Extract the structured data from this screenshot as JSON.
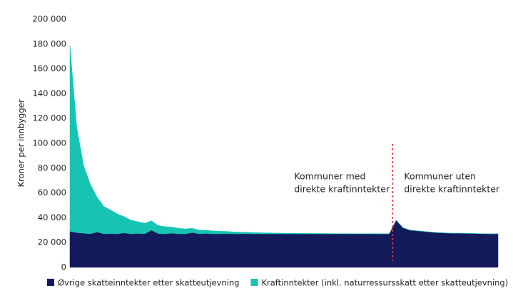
{
  "chart_data": {
    "type": "stacked-area",
    "y_label": "Kroner per innbygger",
    "ylim": [
      0,
      200000
    ],
    "yticks": [
      0,
      {
        "value": 20000,
        "label": "20 000"
      },
      {
        "value": 40000,
        "label": "40 000"
      },
      {
        "value": 60000,
        "label": "60 000"
      },
      {
        "value": 80000,
        "label": "80 000"
      },
      {
        "value": 100000,
        "label": "100 000"
      },
      {
        "value": 120000,
        "label": "120 000"
      },
      {
        "value": 140000,
        "label": "140 000"
      },
      {
        "value": 160000,
        "label": "160 000"
      },
      {
        "value": 180000,
        "label": "180 000"
      },
      {
        "value": 200000,
        "label": "200 000"
      }
    ],
    "categories": [
      null,
      null,
      null,
      null,
      null,
      null,
      null,
      null,
      null,
      null,
      null,
      null,
      null,
      null,
      null,
      null,
      null,
      null,
      null,
      null,
      null,
      null,
      null,
      null,
      null,
      null,
      null,
      null,
      null,
      null,
      null,
      null,
      null,
      null,
      null,
      null,
      null,
      null,
      null,
      null,
      null,
      null,
      null,
      null,
      null,
      null,
      null,
      null,
      null,
      null,
      null,
      null,
      null,
      null,
      null,
      null,
      null,
      null,
      null,
      null,
      null,
      null,
      null,
      null
    ],
    "series": [
      {
        "name": "Øvrige skatteinntekter etter skatteutjevning",
        "color": "#141b5c",
        "values": [
          29000,
          28000,
          27500,
          27000,
          28500,
          27000,
          27200,
          27000,
          27800,
          27000,
          27300,
          27000,
          30000,
          27200,
          27000,
          27500,
          27000,
          27000,
          28000,
          27000,
          27300,
          27000,
          27000,
          27200,
          27000,
          27000,
          27100,
          27000,
          27000,
          27000,
          27000,
          27000,
          27000,
          27000,
          27000,
          27000,
          27000,
          27000,
          27000,
          27000,
          27000,
          27000,
          27000,
          27000,
          27000,
          27000,
          27000,
          27000,
          38000,
          32000,
          30000,
          29500,
          29000,
          28500,
          28000,
          27800,
          27500,
          27500,
          27400,
          27300,
          27200,
          27100,
          27000,
          27000
        ]
      },
      {
        "name": "Kraftinntekter (inkl. naturressursskatt etter skatteutjevning)",
        "color": "#17c3b2",
        "values": [
          150000,
          85000,
          55000,
          40000,
          28000,
          22000,
          19000,
          16000,
          13000,
          11000,
          9500,
          8500,
          7500,
          6500,
          5800,
          5000,
          4500,
          4000,
          3500,
          3000,
          2700,
          2400,
          2100,
          1800,
          1600,
          1400,
          1200,
          1000,
          900,
          800,
          700,
          600,
          500,
          450,
          400,
          350,
          300,
          300,
          250,
          200,
          200,
          150,
          150,
          100,
          100,
          100,
          50,
          50,
          0,
          0,
          0,
          0,
          0,
          0,
          0,
          0,
          0,
          0,
          0,
          0,
          0,
          0,
          0,
          0
        ]
      }
    ],
    "annotations": [
      {
        "lines": [
          "Kommuner med",
          "direkte kraftinntekter"
        ]
      },
      {
        "lines": [
          "Kommuner uten",
          "direkte kraftinntekter"
        ]
      }
    ],
    "divider_color": "#e8343a"
  }
}
